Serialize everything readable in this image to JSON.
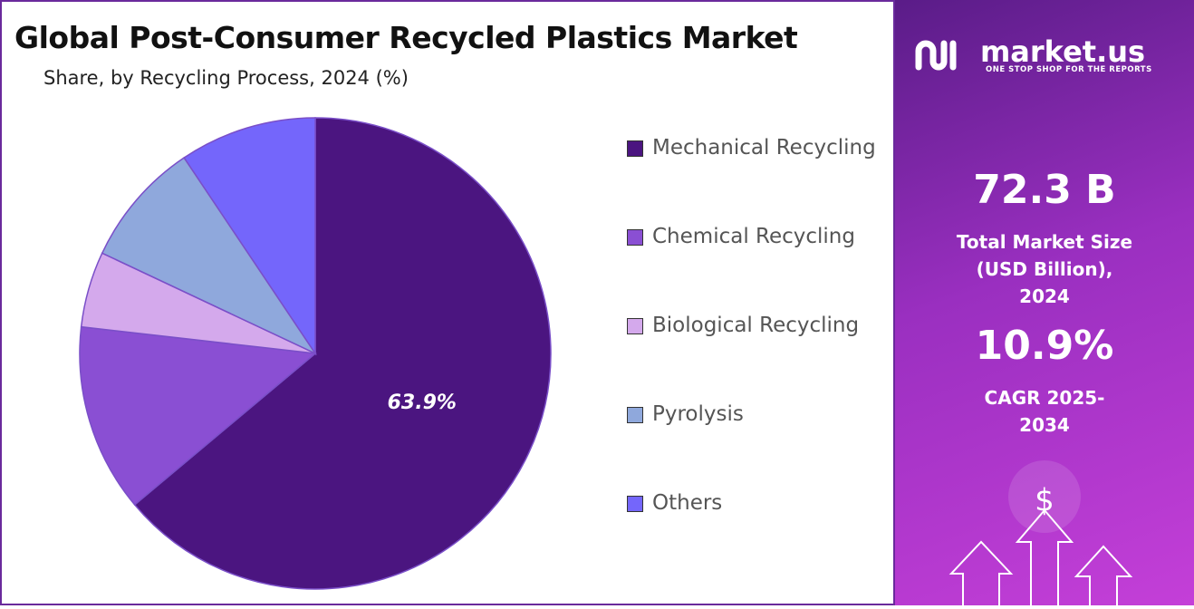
{
  "chart_data": {
    "type": "pie",
    "title": "Global Post-Consumer Recycled Plastics Market",
    "subtitle": "Share, by Recycling Process, 2024 (%)",
    "categories": [
      "Mechanical Recycling",
      "Chemical Recycling",
      "Biological Recycling",
      "Pyrolysis",
      "Others"
    ],
    "values": [
      63.9,
      12.9,
      5.2,
      8.6,
      9.4
    ],
    "value_labels": [
      "63.9%",
      null,
      null,
      null,
      null
    ],
    "colors": [
      "#4b1580",
      "#8a4fd3",
      "#d4a9ec",
      "#8fa8dc",
      "#7466fb"
    ]
  },
  "sidebar": {
    "brand": "market.us",
    "tagline": "ONE STOP SHOP FOR THE REPORTS",
    "market_size": "72.3 B",
    "market_size_label": "Total Market Size (USD Billion), 2024",
    "cagr": "10.9%",
    "cagr_label": "CAGR 2025-2034"
  }
}
